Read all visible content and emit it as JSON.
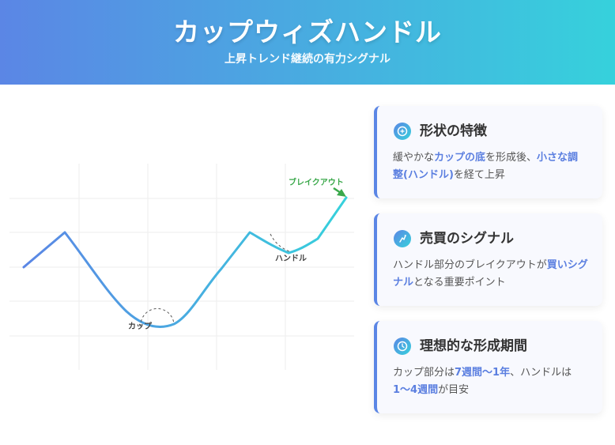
{
  "header": {
    "title": "カップウィズハンドル",
    "subtitle": "上昇トレンド継続の有力シグナル"
  },
  "diagram": {
    "labels": {
      "breakout": "ブレイクアウト",
      "handle": "ハンドル",
      "cup": "カップ"
    },
    "colors": {
      "line_start": "#5b86e5",
      "line_end": "#36d1dc",
      "breakout": "#3aa84a"
    }
  },
  "cards": [
    {
      "icon": "target-icon",
      "title": "形状の特徴",
      "body": [
        {
          "t": "緩やかな",
          "hl": false
        },
        {
          "t": "カップの底",
          "hl": true
        },
        {
          "t": "を形成後、",
          "hl": false
        },
        {
          "t": "小さな調整(ハンドル)",
          "hl": true
        },
        {
          "t": "を経て上昇",
          "hl": false
        }
      ]
    },
    {
      "icon": "signal-icon",
      "title": "売買のシグナル",
      "body": [
        {
          "t": "ハンドル部分のブレイクアウトが",
          "hl": false
        },
        {
          "t": "買いシグナル",
          "hl": true
        },
        {
          "t": "となる重要ポイント",
          "hl": false
        }
      ]
    },
    {
      "icon": "clock-icon",
      "title": "理想的な形成期間",
      "body": [
        {
          "t": "カップ部分は",
          "hl": false
        },
        {
          "t": "7週間〜1年",
          "hl": true
        },
        {
          "t": "、ハンドルは",
          "hl": false
        },
        {
          "t": "1〜4週間",
          "hl": true
        },
        {
          "t": "が目安",
          "hl": false
        }
      ]
    }
  ]
}
